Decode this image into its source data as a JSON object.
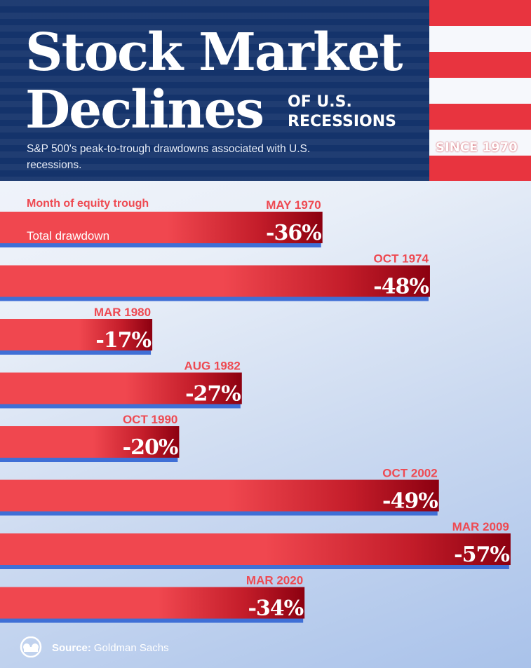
{
  "header": {
    "title_line1": "Stock Market",
    "title_line2": "Declines",
    "tag_line1": "OF U.S.",
    "tag_line2": "RECESSIONS",
    "since": "SINCE 1970",
    "subtitle": "S&P 500's peak-to-trough drawdowns associated with U.S. recessions."
  },
  "legend": {
    "month_label": "Month of equity trough",
    "total_label": "Total drawdown"
  },
  "chart_data": {
    "type": "bar",
    "orientation": "horizontal",
    "categories": [
      "MAY 1970",
      "OCT 1974",
      "MAR 1980",
      "AUG 1982",
      "OCT 1990",
      "OCT 2002",
      "MAR 2009",
      "MAR 2020"
    ],
    "values": [
      -36,
      -48,
      -17,
      -27,
      -20,
      -49,
      -57,
      -34
    ],
    "value_labels": [
      "-36%",
      "-48%",
      "-17%",
      "-27%",
      "-20%",
      "-49%",
      "-57%",
      "-34%"
    ],
    "unit": "%",
    "colors": {
      "bar_light": "#f0474f",
      "bar_dark": "#8c0010",
      "bar_shadow": "#3f6fd6",
      "month_label": "#ee4a52",
      "value_label": "#ffffff"
    }
  },
  "footer": {
    "logo_icon": "visual-capitalist-logo-icon",
    "source_label": "Source:",
    "source_name": "Goldman Sachs"
  }
}
